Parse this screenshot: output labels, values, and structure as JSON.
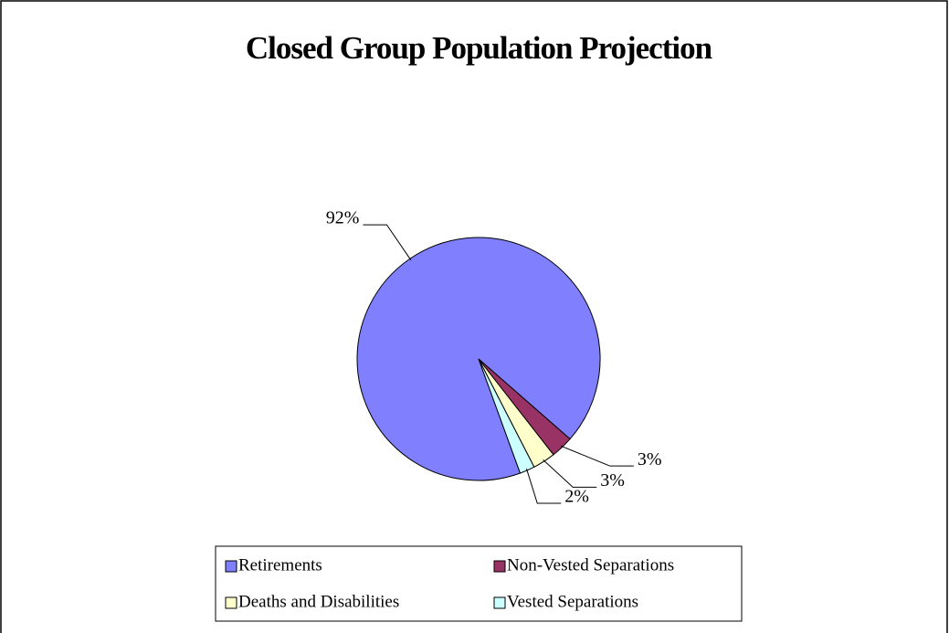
{
  "chart_data": {
    "type": "pie",
    "title": "Closed Group Population Projection",
    "categories": [
      "Retirements",
      "Non-Vested Separations",
      "Deaths and Disabilities",
      "Vested Separations"
    ],
    "values": [
      92,
      3,
      3,
      2
    ],
    "value_labels": [
      "92%",
      "3%",
      "3%",
      "2%"
    ],
    "colors": [
      "#8080ff",
      "#993366",
      "#ffffcc",
      "#ccffff"
    ],
    "legend": "bottom"
  }
}
